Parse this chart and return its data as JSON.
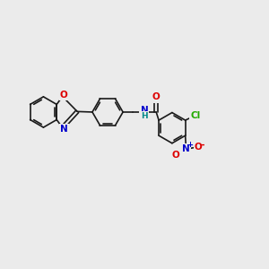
{
  "bg_color": "#ebebeb",
  "bond_color": "#1a1a1a",
  "atom_colors": {
    "O": "#dd0000",
    "N": "#0000cc",
    "Cl": "#22aa00",
    "NH_N": "#0000cc",
    "NH_H": "#008888",
    "NO2_N": "#0000cc",
    "NO2_O": "#dd0000"
  },
  "figsize": [
    3.0,
    3.0
  ],
  "dpi": 100
}
